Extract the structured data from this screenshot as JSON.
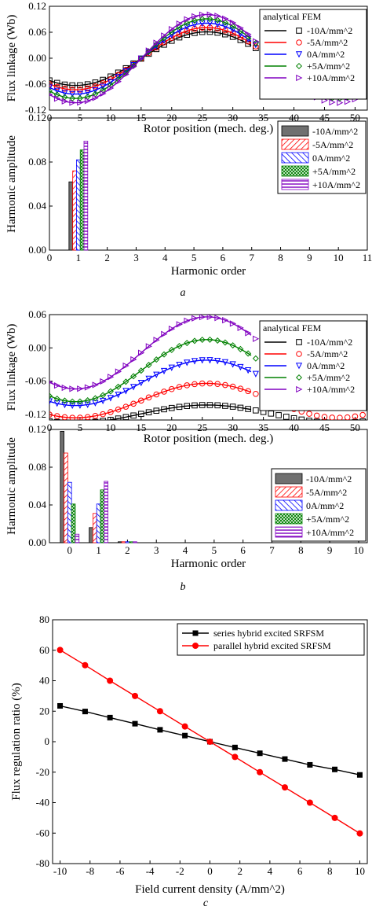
{
  "chart_data": [
    {
      "type": "line",
      "panel": "a",
      "x_label": "Rotor position (mech. deg.)",
      "y_label": "Flux linkage (Wb)",
      "xlim": [
        0,
        52
      ],
      "ylim": [
        -0.12,
        0.12
      ],
      "x_ticks": [
        0,
        5,
        10,
        15,
        20,
        25,
        30,
        35,
        40,
        45,
        50
      ],
      "y_ticks": [
        "0.12",
        "0.06",
        "0.00",
        "-0.06",
        "-0.12"
      ],
      "legend_header": "analytical FEM",
      "series": [
        {
          "name": "-10A/mm^2",
          "color": "#000000",
          "marker": "square",
          "mean": -0.001,
          "amp": 0.062
        },
        {
          "name": "-5A/mm^2",
          "color": "#ff0000",
          "marker": "circle",
          "mean": -0.001,
          "amp": 0.072
        },
        {
          "name": "0A/mm^2",
          "color": "#0000ff",
          "marker": "triangle-down",
          "mean": -0.001,
          "amp": 0.082
        },
        {
          "name": "+5A/mm^2",
          "color": "#008000",
          "marker": "diamond",
          "mean": -0.001,
          "amp": 0.092
        },
        {
          "name": "+10A/mm^2",
          "color": "#8000c0",
          "marker": "triangle-right",
          "mean": -0.001,
          "amp": 0.102
        }
      ]
    },
    {
      "type": "bar",
      "panel": "a",
      "x_label": "Harmonic order",
      "y_label": "Harmonic amplitude",
      "xlim": [
        0,
        11
      ],
      "ylim": [
        0,
        0.12
      ],
      "x_ticks": [
        0,
        1,
        2,
        3,
        4,
        5,
        6,
        7,
        8,
        9,
        10,
        11
      ],
      "y_ticks": [
        "0.12",
        "0.08",
        "0.04",
        "0.00"
      ],
      "series": [
        {
          "name": "-10A/mm^2",
          "pattern": "solid-gray",
          "values": {
            "1": 0.062
          }
        },
        {
          "name": "-5A/mm^2",
          "pattern": "red-diag",
          "values": {
            "1": 0.072
          }
        },
        {
          "name": "0A/mm^2",
          "pattern": "blue-diag",
          "values": {
            "1": 0.082
          }
        },
        {
          "name": "+5A/mm^2",
          "pattern": "green-cross",
          "values": {
            "1": 0.091
          }
        },
        {
          "name": "+10A/mm^2",
          "pattern": "purple-horiz",
          "values": {
            "1": 0.099
          }
        }
      ]
    },
    {
      "type": "line",
      "panel": "b",
      "x_label": "Rotor position (mech. deg.)",
      "y_label": "Flux linkage (Wb)",
      "xlim": [
        0,
        52
      ],
      "ylim": [
        -0.13,
        0.06
      ],
      "x_ticks": [
        0,
        5,
        10,
        15,
        20,
        25,
        30,
        35,
        40,
        45,
        50
      ],
      "y_ticks": [
        "0.06",
        "0.00",
        "-0.06",
        "-0.12"
      ],
      "legend_header": "analytical FEM",
      "series": [
        {
          "name": "-10A/mm^2",
          "color": "#000000",
          "marker": "square",
          "mean": -0.119,
          "amp": 0.016
        },
        {
          "name": "-5A/mm^2",
          "color": "#ff0000",
          "marker": "circle",
          "mean": -0.095,
          "amp": 0.031
        },
        {
          "name": "0A/mm^2",
          "color": "#0000ff",
          "marker": "triangle-down",
          "mean": -0.063,
          "amp": 0.041
        },
        {
          "name": "+5A/mm^2",
          "color": "#008000",
          "marker": "diamond",
          "mean": -0.041,
          "amp": 0.056
        },
        {
          "name": "+10A/mm^2",
          "color": "#8000c0",
          "marker": "triangle-right",
          "mean": -0.009,
          "amp": 0.065
        }
      ]
    },
    {
      "type": "bar",
      "panel": "b",
      "x_label": "Harmonic order",
      "y_label": "Harmonic amplitude",
      "xlim": [
        -0.7,
        10.3
      ],
      "ylim": [
        0,
        0.12
      ],
      "x_ticks": [
        0,
        1,
        2,
        3,
        4,
        5,
        6,
        7,
        8,
        9,
        10
      ],
      "y_ticks": [
        "0.12",
        "0.08",
        "0.04",
        "0.00"
      ],
      "series": [
        {
          "name": "-10A/mm^2",
          "pattern": "solid-gray",
          "values": {
            "0": 0.118,
            "1": 0.016,
            "2": 0.001
          }
        },
        {
          "name": "-5A/mm^2",
          "pattern": "red-diag",
          "values": {
            "0": 0.095,
            "1": 0.031,
            "2": 0.001
          }
        },
        {
          "name": "0A/mm^2",
          "pattern": "blue-diag",
          "values": {
            "0": 0.064,
            "1": 0.041,
            "2": 0.001
          }
        },
        {
          "name": "+5A/mm^2",
          "pattern": "green-cross",
          "values": {
            "0": 0.041,
            "1": 0.056,
            "2": 0.001
          }
        },
        {
          "name": "+10A/mm^2",
          "pattern": "purple-horiz",
          "values": {
            "0": 0.009,
            "1": 0.065,
            "2": 0.001
          }
        }
      ]
    },
    {
      "type": "line",
      "panel": "c",
      "x_label": "Field current density (A/mm^2)",
      "y_label": "Flux regulation ratio (%)",
      "xlim": [
        -10.5,
        10.5
      ],
      "ylim": [
        -80,
        80
      ],
      "x_ticks": [
        -10,
        -8,
        -6,
        -4,
        -2,
        0,
        2,
        4,
        6,
        8,
        10
      ],
      "y_ticks": [
        80,
        60,
        40,
        20,
        0,
        -20,
        -40,
        -60,
        -80
      ],
      "series": [
        {
          "name": "series hybrid excited SRFSM",
          "color": "#000000",
          "marker": "square",
          "x": [
            -10,
            -8.33,
            -6.67,
            -5,
            -3.33,
            -1.67,
            0,
            1.67,
            3.33,
            5,
            6.67,
            8.33,
            10
          ],
          "y": [
            23.5,
            19.8,
            15.8,
            11.8,
            7.8,
            4,
            0,
            -3.8,
            -7.6,
            -11.4,
            -15.2,
            -18.2,
            -21.8
          ]
        },
        {
          "name": "parallel hybrid excited SRFSM",
          "color": "#ff0000",
          "marker": "circle",
          "x": [
            -10,
            -8.33,
            -6.67,
            -5,
            -3.33,
            -1.67,
            0,
            1.67,
            3.33,
            5,
            6.67,
            8.33,
            10
          ],
          "y": [
            60.2,
            50.2,
            40,
            30,
            20,
            10,
            0,
            -10,
            -20,
            -30,
            -40,
            -50,
            -60.2
          ]
        }
      ]
    }
  ],
  "captions": {
    "a": "a",
    "b": "b",
    "c": "c"
  }
}
